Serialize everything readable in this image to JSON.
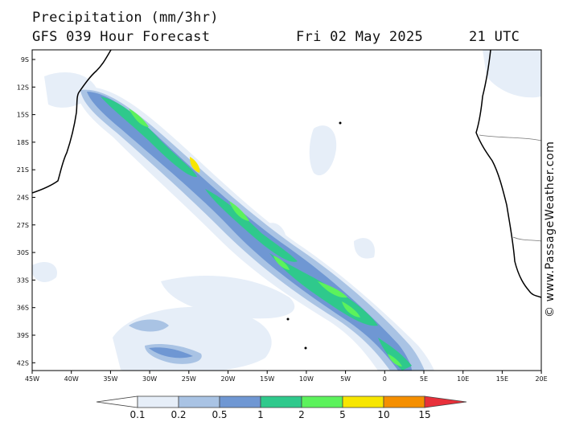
{
  "header": {
    "title": "Precipitation (mm/3hr)",
    "subtitle": "GFS 039 Hour Forecast",
    "date": "Fri 02 May 2025",
    "time": "21 UTC"
  },
  "credit": "© www.PassageWeather.com",
  "axes": {
    "lat_labels": [
      "9S",
      "12S",
      "15S",
      "18S",
      "21S",
      "24S",
      "27S",
      "30S",
      "33S",
      "36S",
      "39S",
      "42S"
    ],
    "lon_labels": [
      "45W",
      "40W",
      "35W",
      "30W",
      "25W",
      "20W",
      "15W",
      "10W",
      "5W",
      "0",
      "5E",
      "10E",
      "15E",
      "20E"
    ]
  },
  "legend": {
    "labels": [
      "0.1",
      "0.2",
      "0.5",
      "1",
      "2",
      "5",
      "10",
      "15"
    ],
    "colors": [
      "#ffffff",
      "#e6eef8",
      "#a9c3e4",
      "#6f97d3",
      "#2fc98c",
      "#5cf25c",
      "#f7e600",
      "#f58f00",
      "#e8303a"
    ]
  }
}
